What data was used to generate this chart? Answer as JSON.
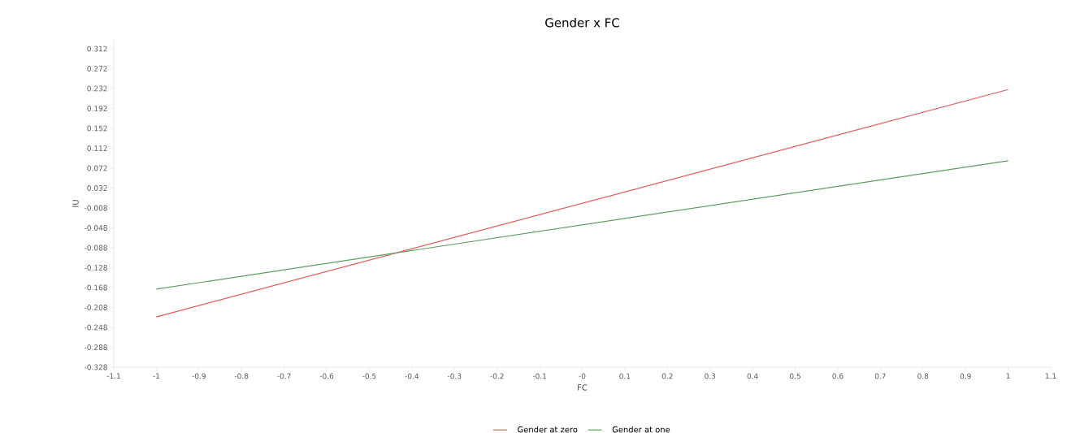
{
  "chart_data": {
    "type": "line",
    "title": "Gender x FC",
    "xlabel": "FC",
    "ylabel": "IU",
    "x": [
      -1,
      1
    ],
    "series": [
      {
        "name": "Gender at zero",
        "color": "#e05a5a",
        "values": [
          -0.227,
          0.23
        ]
      },
      {
        "name": "Gender at one",
        "color": "#5f9a5f",
        "values": [
          -0.171,
          0.087
        ]
      }
    ],
    "xlim": [
      -1.1,
      1.1
    ],
    "ylim": [
      -0.328,
      0.33
    ],
    "xticks": [
      -1.1,
      -1,
      -0.9,
      -0.8,
      -0.7,
      -0.6,
      -0.5,
      -0.4,
      -0.3,
      -0.2,
      -0.1,
      {
        "value": 0,
        "label": "-0"
      },
      0.1,
      0.2,
      0.3,
      0.4,
      0.5,
      0.6,
      0.7,
      0.8,
      0.9,
      1,
      1.1
    ],
    "yticks": [
      0.312,
      0.272,
      0.232,
      0.192,
      0.152,
      0.112,
      0.072,
      0.032,
      -0.008,
      -0.048,
      -0.088,
      -0.128,
      -0.168,
      -0.208,
      -0.248,
      -0.288,
      -0.328
    ],
    "grid": false,
    "legend": "bottom",
    "marker": "none",
    "line_style": "solid"
  }
}
